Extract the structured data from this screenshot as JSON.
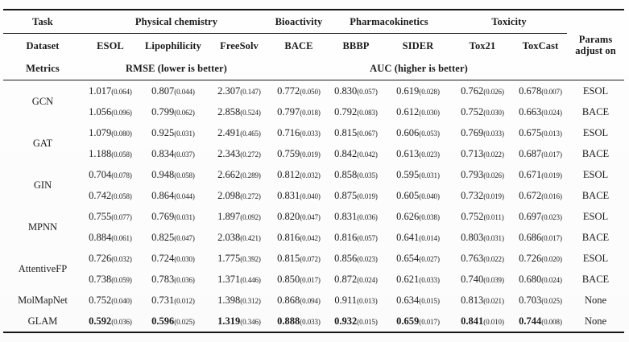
{
  "table": {
    "header": {
      "task_label": "Task",
      "dataset_label": "Dataset",
      "metrics_label": "Metrics",
      "params_label": "Params adjust on",
      "task_groups": [
        {
          "label": "Physical chemistry",
          "span": 3
        },
        {
          "label": "Bioactivity",
          "span": 1
        },
        {
          "label": "Pharmacokinetics",
          "span": 2
        },
        {
          "label": "Toxicity",
          "span": 2
        }
      ],
      "datasets": [
        "ESOL",
        "Lipophilicity",
        "FreeSolv",
        "BACE",
        "BBBP",
        "SIDER",
        "Tox21",
        "ToxCast"
      ],
      "metrics": [
        {
          "label": "RMSE (lower is better)",
          "span": 3
        },
        {
          "label": "AUC (higher is better)",
          "span": 5
        }
      ]
    },
    "models": [
      {
        "name": "GCN",
        "bold": false,
        "rows": [
          {
            "values": [
              [
                "1.017",
                "(0.064)"
              ],
              [
                "0.807",
                "(0.044)"
              ],
              [
                "2.307",
                "(0.147)"
              ],
              [
                "0.772",
                "(0.050)"
              ],
              [
                "0.830",
                "(0.057)"
              ],
              [
                "0.619",
                "(0.028)"
              ],
              [
                "0.762",
                "(0.026)"
              ],
              [
                "0.678",
                "(0.007)"
              ]
            ],
            "params": "ESOL"
          },
          {
            "values": [
              [
                "1.056",
                "(0.096)"
              ],
              [
                "0.799",
                "(0.062)"
              ],
              [
                "2.858",
                "(0.524)"
              ],
              [
                "0.797",
                "(0.018)"
              ],
              [
                "0.792",
                "(0.083)"
              ],
              [
                "0.612",
                "(0.030)"
              ],
              [
                "0.752",
                "(0.030)"
              ],
              [
                "0.663",
                "(0.024)"
              ]
            ],
            "params": "BACE"
          }
        ]
      },
      {
        "name": "GAT",
        "bold": false,
        "rows": [
          {
            "values": [
              [
                "1.079",
                "(0.080)"
              ],
              [
                "0.925",
                "(0.031)"
              ],
              [
                "2.491",
                "(0.465)"
              ],
              [
                "0.716",
                "(0.033)"
              ],
              [
                "0.815",
                "(0.067)"
              ],
              [
                "0.606",
                "(0.053)"
              ],
              [
                "0.769",
                "(0.033)"
              ],
              [
                "0.675",
                "(0.013)"
              ]
            ],
            "params": "ESOL"
          },
          {
            "values": [
              [
                "1.188",
                "(0.058)"
              ],
              [
                "0.834",
                "(0.037)"
              ],
              [
                "2.343",
                "(0.272)"
              ],
              [
                "0.759",
                "(0.019)"
              ],
              [
                "0.842",
                "(0.042)"
              ],
              [
                "0.613",
                "(0.023)"
              ],
              [
                "0.713",
                "(0.022)"
              ],
              [
                "0.687",
                "(0.017)"
              ]
            ],
            "params": "BACE"
          }
        ]
      },
      {
        "name": "GIN",
        "bold": false,
        "rows": [
          {
            "values": [
              [
                "0.704",
                "(0.078)"
              ],
              [
                "0.948",
                "(0.058)"
              ],
              [
                "2.662",
                "(0.289)"
              ],
              [
                "0.812",
                "(0.032)"
              ],
              [
                "0.858",
                "(0.035)"
              ],
              [
                "0.595",
                "(0.031)"
              ],
              [
                "0.793",
                "(0.026)"
              ],
              [
                "0.671",
                "(0.019)"
              ]
            ],
            "params": "ESOL"
          },
          {
            "values": [
              [
                "0.742",
                "(0.058)"
              ],
              [
                "0.864",
                "(0.044)"
              ],
              [
                "2.098",
                "(0.272)"
              ],
              [
                "0.831",
                "(0.040)"
              ],
              [
                "0.875",
                "(0.019)"
              ],
              [
                "0.605",
                "(0.040)"
              ],
              [
                "0.732",
                "(0.019)"
              ],
              [
                "0.672",
                "(0.016)"
              ]
            ],
            "params": "BACE"
          }
        ]
      },
      {
        "name": "MPNN",
        "bold": false,
        "rows": [
          {
            "values": [
              [
                "0.755",
                "(0.077)"
              ],
              [
                "0.769",
                "(0.031)"
              ],
              [
                "1.897",
                "(0.092)"
              ],
              [
                "0.820",
                "(0.047)"
              ],
              [
                "0.831",
                "(0.036)"
              ],
              [
                "0.626",
                "(0.038)"
              ],
              [
                "0.752",
                "(0.011)"
              ],
              [
                "0.697",
                "(0.023)"
              ]
            ],
            "params": "ESOL"
          },
          {
            "values": [
              [
                "0.884",
                "(0.061)"
              ],
              [
                "0.825",
                "(0.047)"
              ],
              [
                "2.038",
                "(0.421)"
              ],
              [
                "0.816",
                "(0.042)"
              ],
              [
                "0.816",
                "(0.057)"
              ],
              [
                "0.641",
                "(0.014)"
              ],
              [
                "0.803",
                "(0.031)"
              ],
              [
                "0.686",
                "(0.017)"
              ]
            ],
            "params": "BACE"
          }
        ]
      },
      {
        "name": "AttentiveFP",
        "bold": false,
        "rows": [
          {
            "values": [
              [
                "0.726",
                "(0.032)"
              ],
              [
                "0.724",
                "(0.030)"
              ],
              [
                "1.775",
                "(0.392)"
              ],
              [
                "0.815",
                "(0.072)"
              ],
              [
                "0.856",
                "(0.023)"
              ],
              [
                "0.654",
                "(0.027)"
              ],
              [
                "0.763",
                "(0.022)"
              ],
              [
                "0.726",
                "(0.020)"
              ]
            ],
            "params": "ESOL"
          },
          {
            "values": [
              [
                "0.738",
                "(0.059)"
              ],
              [
                "0.783",
                "(0.036)"
              ],
              [
                "1.371",
                "(0.446)"
              ],
              [
                "0.850",
                "(0.017)"
              ],
              [
                "0.872",
                "(0.024)"
              ],
              [
                "0.621",
                "(0.033)"
              ],
              [
                "0.740",
                "(0.039)"
              ],
              [
                "0.680",
                "(0.024)"
              ]
            ],
            "params": "BACE"
          }
        ]
      },
      {
        "name": "MolMapNet",
        "bold": false,
        "rows": [
          {
            "values": [
              [
                "0.752",
                "(0.040)"
              ],
              [
                "0.731",
                "(0.012)"
              ],
              [
                "1.398",
                "(0.312)"
              ],
              [
                "0.868",
                "(0.094)"
              ],
              [
                "0.911",
                "(0.013)"
              ],
              [
                "0.634",
                "(0.015)"
              ],
              [
                "0.813",
                "(0.021)"
              ],
              [
                "0.703",
                "(0.025)"
              ]
            ],
            "params": "None"
          }
        ]
      },
      {
        "name": "GLAM",
        "bold": true,
        "rows": [
          {
            "values": [
              [
                "0.592",
                "(0.036)"
              ],
              [
                "0.596",
                "(0.025)"
              ],
              [
                "1.319",
                "(0.346)"
              ],
              [
                "0.888",
                "(0.033)"
              ],
              [
                "0.932",
                "(0.015)"
              ],
              [
                "0.659",
                "(0.017)"
              ],
              [
                "0.841",
                "(0.010)"
              ],
              [
                "0.744",
                "(0.008)"
              ]
            ],
            "params": "None"
          }
        ]
      }
    ],
    "colors": {
      "text": "#1b1b1b",
      "rule": "#141414",
      "background": "#fdfdfd"
    }
  }
}
